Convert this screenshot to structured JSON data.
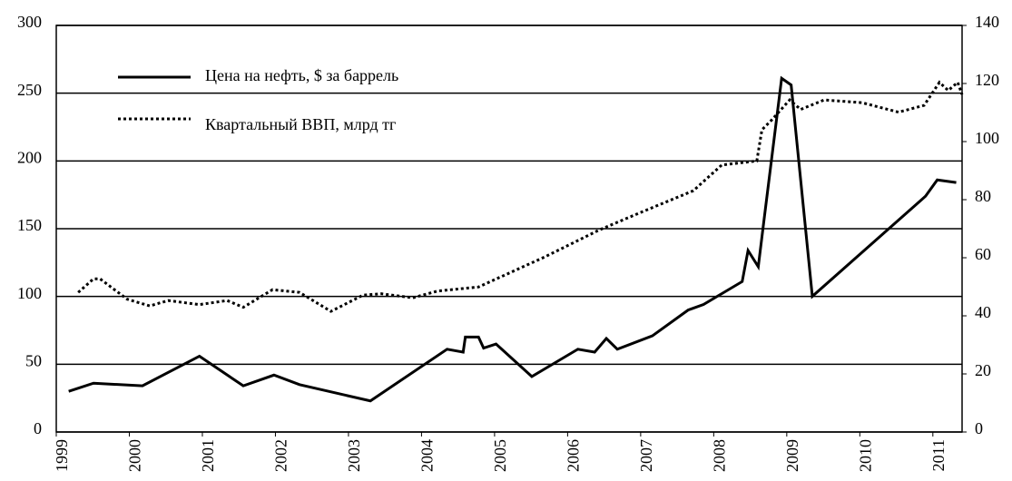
{
  "chart_data": {
    "type": "line",
    "xlim": [
      1999,
      2011.4
    ],
    "xticks": [
      1999,
      2000,
      2001,
      2002,
      2003,
      2004,
      2005,
      2006,
      2007,
      2008,
      2009,
      2010,
      2011
    ],
    "ylim": [
      0,
      300
    ],
    "yticks": [
      0,
      50,
      100,
      150,
      200,
      250,
      300
    ],
    "y2lim": [
      0,
      140
    ],
    "y2ticks": [
      0,
      20,
      40,
      60,
      80,
      100,
      120,
      140
    ],
    "grid": true,
    "legend": "upper left",
    "series": [
      {
        "name": "Цена на нефть, $ за баррель",
        "color": "#000000",
        "style": "solid",
        "axis": "y2",
        "x": [
          1999.17,
          1999.51,
          2000.18,
          2000.96,
          2001.56,
          2001.98,
          2002.33,
          2003.3,
          2004.35,
          2004.57,
          2004.6,
          2004.78,
          2004.85,
          2005.02,
          2005.51,
          2006.14,
          2006.37,
          2006.53,
          2006.68,
          2007.16,
          2007.65,
          2007.86,
          2008.39,
          2008.47,
          2008.61,
          2008.69,
          2008.93,
          2009.06,
          2009.35,
          2010.9,
          2011.06,
          2011.32
        ],
        "values": [
          14,
          16.8,
          15.9,
          26.1,
          15.9,
          19.6,
          16.3,
          10.7,
          28.5,
          27.5,
          32.7,
          32.7,
          28.9,
          30.3,
          19.1,
          28.5,
          27.5,
          32.2,
          28.5,
          33.1,
          42,
          43.9,
          51.8,
          62.5,
          56.9,
          73.3,
          121.8,
          119.5,
          46.7,
          81.2,
          86.8,
          85.9
        ]
      },
      {
        "name": "Квартальный ВВП, млрд тг",
        "color": "#000000",
        "style": "dotted",
        "x": [
          1999.3,
          1999.51,
          1999.6,
          1999.97,
          2000.28,
          2000.53,
          2000.96,
          2001.34,
          2001.56,
          2001.96,
          2002.33,
          2002.76,
          2003.2,
          2003.45,
          2003.88,
          2004.22,
          2004.78,
          2005.68,
          2006.43,
          2007.0,
          2007.72,
          2008.11,
          2008.59,
          2008.66,
          2008.79,
          2009.04,
          2009.19,
          2009.51,
          2010.03,
          2010.53,
          2010.88,
          2011.09,
          2011.21,
          2011.34,
          2011.4
        ],
        "values": [
          103,
          113,
          113,
          98,
          93,
          97,
          94,
          97,
          92,
          105,
          103,
          89,
          101,
          102,
          99,
          104,
          107,
          129,
          149,
          162,
          178,
          197,
          200,
          223,
          230,
          245,
          238,
          245,
          243,
          236,
          241,
          258,
          252,
          258,
          249
        ]
      }
    ]
  }
}
